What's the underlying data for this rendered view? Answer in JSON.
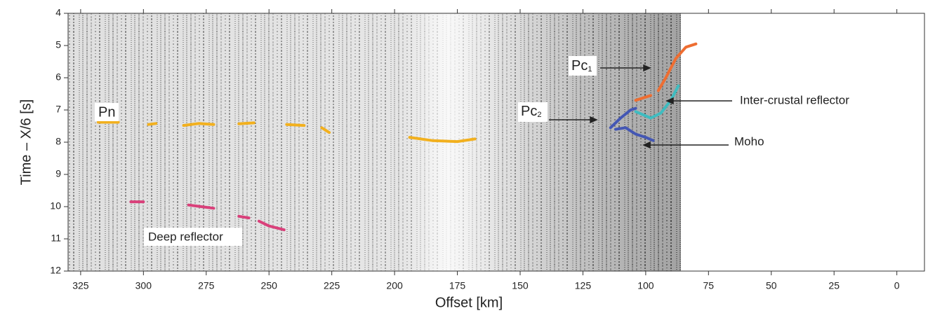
{
  "chart_data": {
    "type": "line",
    "xlabel": "Offset [km]",
    "ylabel": "Time – X/6 [s]",
    "xlim": [
      330,
      -11
    ],
    "ylim": [
      4,
      12
    ],
    "xticks": [
      325,
      300,
      275,
      250,
      225,
      200,
      175,
      150,
      125,
      100,
      75,
      50,
      25,
      0
    ],
    "yticks": [
      4,
      5,
      6,
      7,
      8,
      9,
      10,
      11,
      12
    ],
    "series": [
      {
        "color": "#f2b01e",
        "x": [
          318,
          310,
          null,
          298,
          295,
          null,
          284,
          278,
          272,
          null,
          262,
          256,
          null,
          243,
          236,
          null,
          229,
          226,
          null,
          194,
          185,
          175,
          168
        ],
        "y": [
          7.38,
          7.38,
          null,
          7.45,
          7.42,
          null,
          7.48,
          7.42,
          7.45,
          null,
          7.43,
          7.4,
          null,
          7.45,
          7.48,
          null,
          7.55,
          7.7,
          null,
          7.85,
          7.95,
          7.98,
          7.9
        ]
      },
      {
        "color": "#d9407a",
        "x": [
          305,
          300,
          null,
          282,
          277,
          272,
          null,
          262,
          258,
          null,
          254,
          250,
          244
        ],
        "y": [
          9.85,
          9.85,
          null,
          9.95,
          10.0,
          10.05,
          null,
          10.3,
          10.35,
          null,
          10.45,
          10.6,
          10.72
        ]
      },
      {
        "color": "#ee6e32",
        "x": [
          104,
          98,
          null,
          95,
          92,
          88,
          84,
          80
        ],
        "y": [
          6.7,
          6.55,
          null,
          6.4,
          6.0,
          5.4,
          5.05,
          4.95
        ]
      },
      {
        "color": "#3fbcc0",
        "x": [
          104,
          98,
          94,
          90,
          87
        ],
        "y": [
          7.05,
          7.25,
          7.1,
          6.7,
          6.25
        ]
      },
      {
        "color": "#4457b4",
        "x": [
          114,
          110,
          106,
          104
        ],
        "y": [
          7.55,
          7.25,
          7.0,
          6.95
        ]
      },
      {
        "color": "#4457b4",
        "x": [
          112,
          108,
          104,
          100,
          97
        ],
        "y": [
          7.6,
          7.55,
          7.75,
          7.85,
          7.95
        ]
      }
    ],
    "annotations": [
      {
        "text": "Pn"
      },
      {
        "text": "Pc",
        "sub": "1"
      },
      {
        "text": "Pc",
        "sub": "2"
      },
      {
        "text": "Inter-crustal reflector"
      },
      {
        "text": "Moho"
      },
      {
        "text": "Deep reflector"
      }
    ]
  }
}
